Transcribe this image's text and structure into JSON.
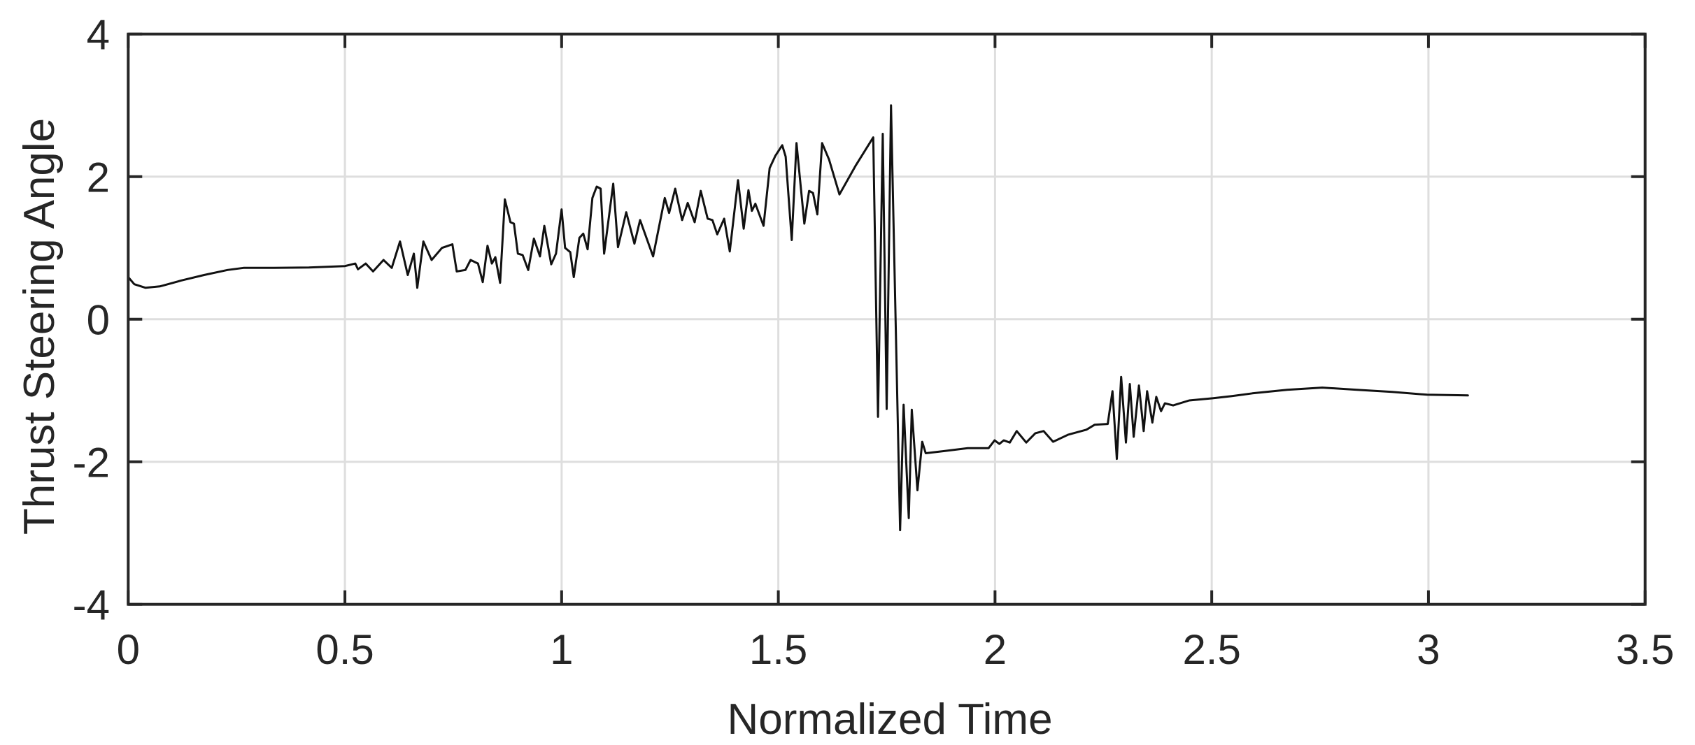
{
  "chart_data": {
    "type": "line",
    "title": "",
    "xlabel": "Normalized Time",
    "ylabel": "Thrust Steering Angle",
    "xlim": [
      0,
      3.5
    ],
    "ylim": [
      -4,
      4
    ],
    "grid": true,
    "legend": null,
    "xticks": [
      0,
      0.5,
      1,
      1.5,
      2,
      2.5,
      3,
      3.5
    ],
    "xtick_labels": [
      "0",
      "0.5",
      "1",
      "1.5",
      "2",
      "2.5",
      "3",
      "3.5"
    ],
    "yticks": [
      -4,
      -2,
      0,
      2,
      4
    ],
    "ytick_labels": [
      "-4",
      "-2",
      "0",
      "2",
      "4"
    ],
    "series": [
      {
        "name": "Thrust Steering Angle",
        "color": "#111111",
        "x": [
          0,
          0.014,
          0.04,
          0.073,
          0.121,
          0.175,
          0.229,
          0.266,
          0.336,
          0.417,
          0.5,
          0.524,
          0.53,
          0.548,
          0.565,
          0.589,
          0.608,
          0.627,
          0.645,
          0.659,
          0.667,
          0.681,
          0.7,
          0.724,
          0.748,
          0.758,
          0.778,
          0.79,
          0.807,
          0.818,
          0.829,
          0.839,
          0.847,
          0.858,
          0.869,
          0.882,
          0.89,
          0.899,
          0.91,
          0.923,
          0.936,
          0.95,
          0.96,
          0.976,
          0.987,
          1.0,
          1.008,
          1.02,
          1.028,
          1.041,
          1.05,
          1.06,
          1.071,
          1.081,
          1.09,
          1.098,
          1.119,
          1.13,
          1.149,
          1.168,
          1.181,
          1.211,
          1.238,
          1.248,
          1.262,
          1.278,
          1.291,
          1.307,
          1.321,
          1.337,
          1.348,
          1.359,
          1.375,
          1.388,
          1.407,
          1.42,
          1.431,
          1.439,
          1.447,
          1.466,
          1.48,
          1.493,
          1.509,
          1.517,
          1.531,
          1.542,
          1.56,
          1.571,
          1.58,
          1.59,
          1.601,
          1.617,
          1.641,
          1.679,
          1.719,
          1.73,
          1.741,
          1.75,
          1.76,
          1.781,
          1.789,
          1.801,
          1.808,
          1.821,
          1.832,
          1.84,
          1.883,
          1.937,
          1.985,
          1.999,
          2.01,
          2.02,
          2.034,
          2.05,
          2.072,
          2.093,
          2.112,
          2.134,
          2.169,
          2.211,
          2.23,
          2.26,
          2.271,
          2.281,
          2.291,
          2.302,
          2.311,
          2.32,
          2.332,
          2.343,
          2.351,
          2.363,
          2.372,
          2.383,
          2.392,
          2.411,
          2.448,
          2.502,
          2.545,
          2.594,
          2.674,
          2.755,
          2.835,
          2.916,
          2.997,
          3.091
        ],
        "y": [
          0.59,
          0.49,
          0.44,
          0.46,
          0.54,
          0.62,
          0.69,
          0.72,
          0.72,
          0.725,
          0.745,
          0.78,
          0.7,
          0.78,
          0.67,
          0.83,
          0.72,
          1.09,
          0.62,
          0.92,
          0.44,
          1.09,
          0.83,
          1.0,
          1.05,
          0.67,
          0.69,
          0.83,
          0.78,
          0.52,
          1.03,
          0.78,
          0.87,
          0.51,
          1.68,
          1.36,
          1.34,
          0.92,
          0.9,
          0.69,
          1.13,
          0.88,
          1.31,
          0.77,
          0.92,
          1.54,
          1.0,
          0.94,
          0.59,
          1.14,
          1.2,
          0.98,
          1.7,
          1.86,
          1.83,
          0.92,
          1.9,
          1.01,
          1.5,
          1.06,
          1.39,
          0.88,
          1.7,
          1.49,
          1.83,
          1.39,
          1.63,
          1.36,
          1.8,
          1.41,
          1.39,
          1.19,
          1.41,
          0.95,
          1.95,
          1.27,
          1.81,
          1.52,
          1.62,
          1.31,
          2.12,
          2.29,
          2.44,
          2.28,
          1.11,
          2.47,
          1.34,
          1.8,
          1.77,
          1.47,
          2.47,
          2.24,
          1.75,
          2.16,
          2.55,
          -1.37,
          2.6,
          -1.26,
          3.0,
          -2.96,
          -1.2,
          -2.79,
          -1.27,
          -2.4,
          -1.72,
          -1.88,
          -1.85,
          -1.81,
          -1.81,
          -1.7,
          -1.75,
          -1.7,
          -1.73,
          -1.57,
          -1.73,
          -1.6,
          -1.57,
          -1.72,
          -1.62,
          -1.55,
          -1.48,
          -1.47,
          -1.01,
          -1.96,
          -0.81,
          -1.73,
          -0.91,
          -1.65,
          -0.93,
          -1.57,
          -1.01,
          -1.45,
          -1.09,
          -1.29,
          -1.18,
          -1.21,
          -1.14,
          -1.11,
          -1.08,
          -1.04,
          -0.99,
          -0.96,
          -0.99,
          -1.02,
          -1.06,
          -1.07
        ]
      }
    ]
  },
  "labels": {
    "xlabel": "Normalized Time",
    "ylabel": "Thrust Steering Angle"
  }
}
